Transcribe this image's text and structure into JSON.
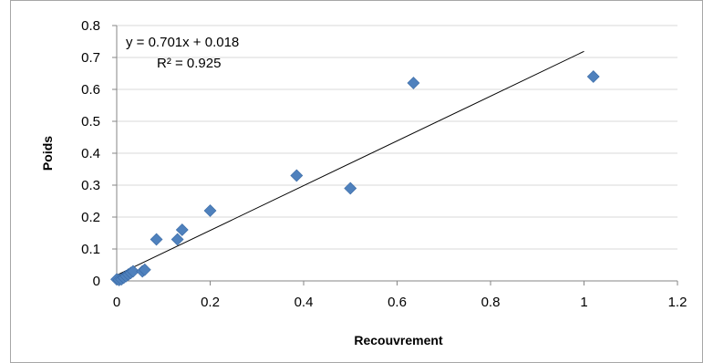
{
  "chart_data": {
    "type": "scatter",
    "xlabel": "Recouvrement",
    "ylabel": "Poids",
    "xlim": [
      0,
      1.2
    ],
    "ylim": [
      0,
      0.8
    ],
    "x_ticks": [
      "0",
      "0.2",
      "0.4",
      "0.6",
      "0.8",
      "1",
      "1.2"
    ],
    "y_ticks": [
      "0",
      "0.1",
      "0.2",
      "0.3",
      "0.4",
      "0.5",
      "0.6",
      "0.7",
      "0.8"
    ],
    "grid": true,
    "series": [
      {
        "marker": "diamond",
        "color": "#4F81BD",
        "points": [
          [
            0.0,
            0.005
          ],
          [
            0.005,
            0.003
          ],
          [
            0.01,
            0.005
          ],
          [
            0.015,
            0.01
          ],
          [
            0.02,
            0.015
          ],
          [
            0.025,
            0.02
          ],
          [
            0.03,
            0.025
          ],
          [
            0.035,
            0.03
          ],
          [
            0.055,
            0.03
          ],
          [
            0.06,
            0.035
          ],
          [
            0.085,
            0.13
          ],
          [
            0.13,
            0.13
          ],
          [
            0.14,
            0.16
          ],
          [
            0.2,
            0.22
          ],
          [
            0.385,
            0.33
          ],
          [
            0.5,
            0.29
          ],
          [
            0.635,
            0.62
          ],
          [
            1.02,
            0.64
          ]
        ]
      }
    ],
    "trendline": {
      "slope": 0.701,
      "intercept": 0.018,
      "x_range": [
        0,
        1.0
      ],
      "color": "#000000",
      "equation": "y = 0.701x + 0.018",
      "r_squared": "R² = 0.925"
    }
  }
}
